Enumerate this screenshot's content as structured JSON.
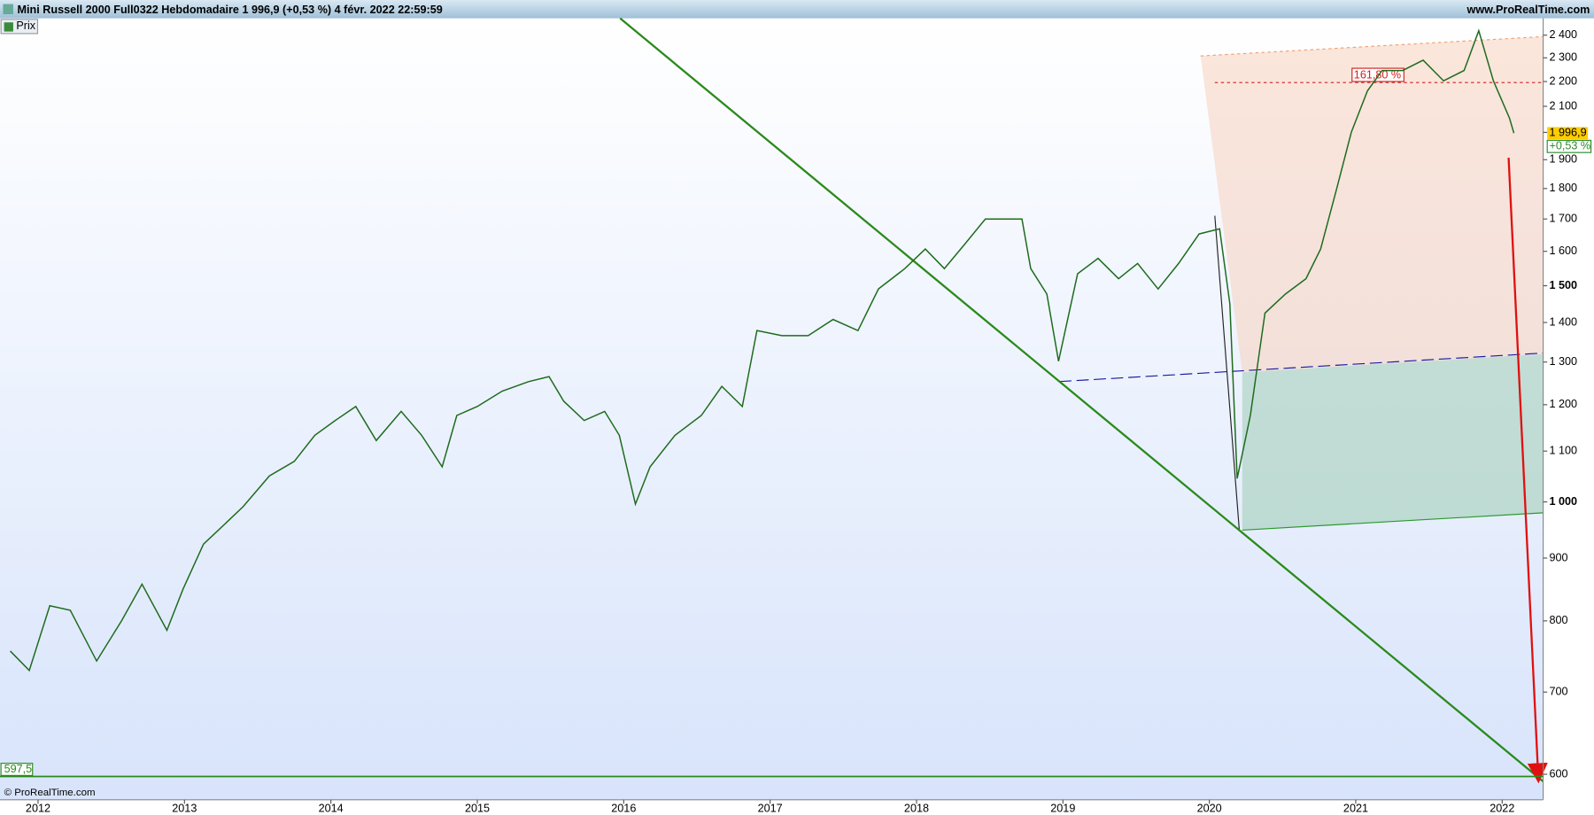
{
  "chart_data": {
    "type": "line",
    "title": "Mini Russell 2000 Full0322 Hebdomadaire 1 996,9 (+0,53 %) 4 févr. 2022 22:59:59",
    "brand": "www.ProRealTime.com",
    "copyright": "© ProRealTime.com",
    "x": [
      2011.81,
      2011.94,
      2012.08,
      2012.22,
      2012.4,
      2012.57,
      2012.71,
      2012.88,
      2012.99,
      2013.13,
      2013.23,
      2013.4,
      2013.58,
      2013.75,
      2013.89,
      2014.03,
      2014.17,
      2014.31,
      2014.48,
      2014.62,
      2014.76,
      2014.86,
      2015.0,
      2015.17,
      2015.35,
      2015.49,
      2015.59,
      2015.73,
      2015.87,
      2015.97,
      2016.08,
      2016.18,
      2016.35,
      2016.53,
      2016.67,
      2016.81,
      2016.91,
      2017.08,
      2017.26,
      2017.43,
      2017.6,
      2017.74,
      2017.92,
      2018.06,
      2018.19,
      2018.33,
      2018.47,
      2018.61,
      2018.72,
      2018.78,
      2018.89,
      2018.97,
      2019.1,
      2019.24,
      2019.38,
      2019.51,
      2019.65,
      2019.79,
      2019.93,
      2020.07,
      2020.14,
      2020.19,
      2020.28,
      2020.38,
      2020.52,
      2020.66,
      2020.76,
      2020.87,
      2020.97,
      2021.08,
      2021.18,
      2021.32,
      2021.46,
      2021.6,
      2021.74,
      2021.84,
      2021.94,
      2022.05,
      2022.08
    ],
    "series": [
      {
        "name": "Prix",
        "color": "#1e6b1e",
        "values": [
          756,
          729,
          823,
          816,
          742,
          800,
          857,
          786,
          849,
          924,
          948,
          991,
          1050,
          1079,
          1133,
          1165,
          1196,
          1122,
          1185,
          1133,
          1068,
          1176,
          1196,
          1231,
          1253,
          1265,
          1208,
          1165,
          1185,
          1133,
          996,
          1068,
          1133,
          1176,
          1242,
          1196,
          1379,
          1366,
          1366,
          1408,
          1379,
          1491,
          1549,
          1607,
          1549,
          1622,
          1700,
          1700,
          1700,
          1549,
          1477,
          1302,
          1534,
          1579,
          1520,
          1564,
          1491,
          1564,
          1653,
          1669,
          1450,
          1045,
          1176,
          1425,
          1477,
          1520,
          1607,
          1800,
          2001,
          2162,
          2246,
          2246,
          2290,
          2203,
          2246,
          2420,
          2203,
          2054,
          1997
        ]
      }
    ],
    "xlim": [
      2011.74,
      2022.28
    ],
    "xticks": [
      2012,
      2013,
      2014,
      2015,
      2016,
      2017,
      2018,
      2019,
      2020,
      2021,
      2022
    ],
    "ylim": [
      572,
      2477
    ],
    "log_scale": true,
    "grid": false,
    "yticks": [
      600,
      700,
      800,
      900,
      {
        "value": 1000,
        "label": "1 000"
      },
      {
        "value": 1100,
        "label": "1 100"
      },
      {
        "value": 1200,
        "label": "1 200"
      },
      {
        "value": 1300,
        "label": "1 300"
      },
      {
        "value": 1400,
        "label": "1 400"
      },
      {
        "value": 1500,
        "label": "1 500"
      },
      {
        "value": 1600,
        "label": "1 600"
      },
      {
        "value": 1700,
        "label": "1 700"
      },
      {
        "value": 1800,
        "label": "1 800"
      },
      {
        "value": 1900,
        "label": "1 900"
      },
      {
        "value": 2000,
        "label": "2 000"
      },
      {
        "value": 2100,
        "label": "2 100"
      },
      {
        "value": 2200,
        "label": "2 200"
      },
      {
        "value": 2300,
        "label": "2 300"
      },
      {
        "value": 2400,
        "label": "2 400"
      }
    ],
    "last_price": {
      "value": 1996.9,
      "label": "1 996,9"
    },
    "change_label": "+0,53 %",
    "support": {
      "value": 597.5,
      "label": "597,5"
    },
    "fib_level": {
      "value": 2196,
      "label": "161,80 %"
    }
  }
}
